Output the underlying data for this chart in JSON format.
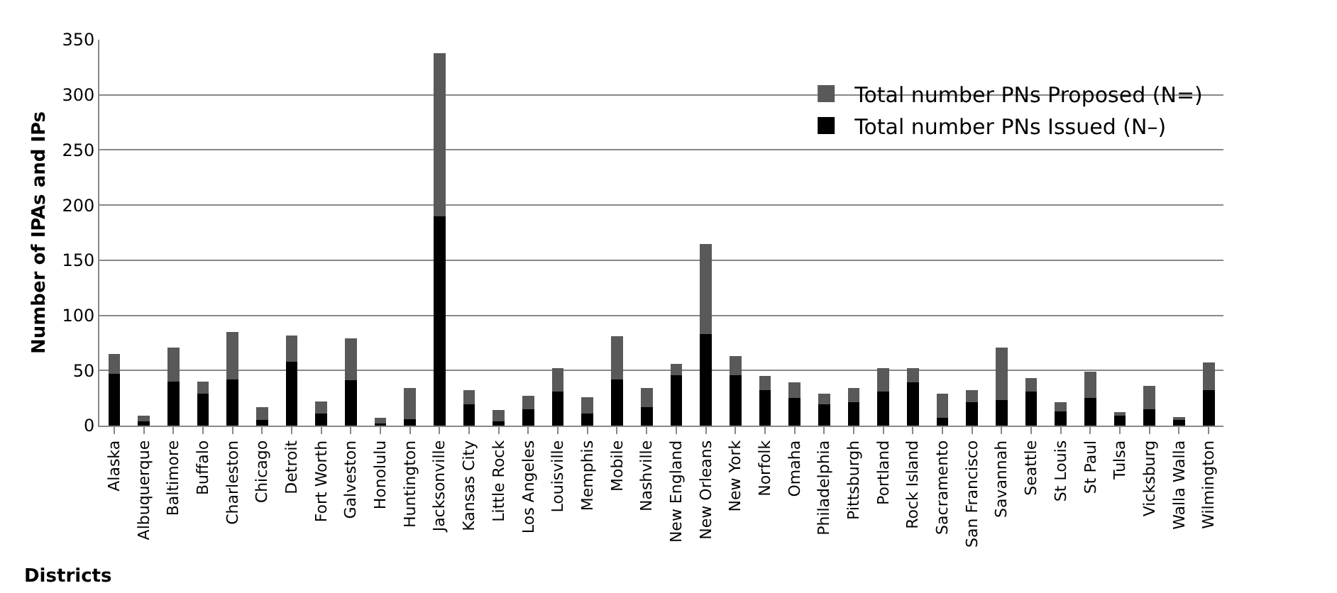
{
  "chart_data": {
    "type": "bar",
    "stacked": true,
    "xlabel": "Districts",
    "ylabel": "Number of IPAs and IPs",
    "categories": [
      "Alaska",
      "Albuquerque",
      "Baltimore",
      "Buffalo",
      "Charleston",
      "Chicago",
      "Detroit",
      "Fort Worth",
      "Galveston",
      "Honolulu",
      "Huntington",
      "Jacksonville",
      "Kansas City",
      "Little Rock",
      "Los Angeles",
      "Louisville",
      "Memphis",
      "Mobile",
      "Nashville",
      "New England",
      "New Orleans",
      "New York",
      "Norfolk",
      "Omaha",
      "Philadelphia",
      "Pittsburgh",
      "Portland",
      "Rock Island",
      "Sacramento",
      "San Francisco",
      "Savannah",
      "Seattle",
      "St Louis",
      "St Paul",
      "Tulsa",
      "Vicksburg",
      "Walla Walla",
      "Wilmington"
    ],
    "series": [
      {
        "name": "Total number PNs Issued (N–)",
        "color": "#000000",
        "values": [
          47,
          4,
          40,
          29,
          42,
          5,
          58,
          11,
          41,
          2,
          6,
          190,
          19,
          4,
          15,
          31,
          11,
          42,
          17,
          46,
          83,
          46,
          32,
          25,
          19,
          21,
          31,
          39,
          7,
          21,
          23,
          31,
          13,
          25,
          10,
          15,
          6,
          32
        ]
      },
      {
        "name": "Total number PNs Proposed (N=)",
        "color": "#595959",
        "values": [
          18,
          5,
          31,
          11,
          43,
          12,
          24,
          11,
          38,
          5,
          28,
          148,
          13,
          10,
          12,
          21,
          15,
          39,
          17,
          10,
          82,
          17,
          13,
          14,
          10,
          13,
          21,
          13,
          22,
          11,
          48,
          12,
          8,
          24,
          2,
          21,
          2,
          25
        ]
      }
    ],
    "ylim": [
      0,
      350
    ],
    "yticks": [
      0,
      50,
      100,
      150,
      200,
      250,
      300,
      350
    ],
    "grid": "y",
    "legend": "top right"
  }
}
